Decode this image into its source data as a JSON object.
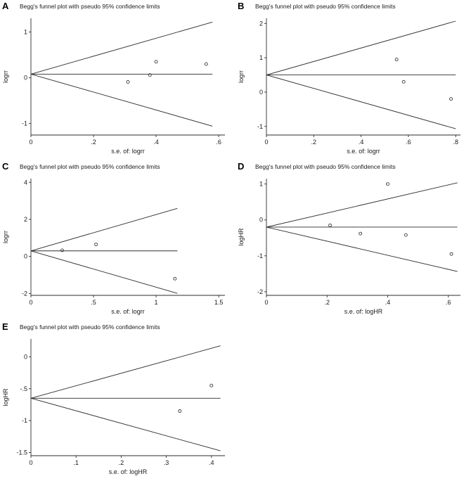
{
  "page": {
    "background": "#ffffff",
    "line_color": "#2b2b2b",
    "point_color": "#3a3a3a"
  },
  "chart_data": [
    {
      "type": "scatter",
      "panel": "A",
      "title": "Begg's funnel plot with pseudo 95% confidence limits",
      "xlabel": "s.e. of: logrr",
      "ylabel": "logrr",
      "xlim": [
        0,
        0.62
      ],
      "ylim": [
        -1.25,
        1.3
      ],
      "xticks": [
        0,
        0.2,
        0.4,
        0.6
      ],
      "xtick_labels": [
        "0",
        ".2",
        ".4",
        ".6"
      ],
      "yticks": [
        -1,
        0,
        1
      ],
      "ytick_labels": [
        "-1",
        "0",
        "1"
      ],
      "center": 0.08,
      "funnel_max_se": 0.58,
      "points": [
        [
          0.31,
          -0.09
        ],
        [
          0.38,
          0.06
        ],
        [
          0.4,
          0.35
        ],
        [
          0.56,
          0.3
        ]
      ]
    },
    {
      "type": "scatter",
      "panel": "B",
      "title": "Begg's funnel plot with pseudo 95% confidence limits",
      "xlabel": "s.e. of: logrr",
      "ylabel": "logrr",
      "xlim": [
        0,
        0.82
      ],
      "ylim": [
        -1.25,
        2.15
      ],
      "xticks": [
        0,
        0.2,
        0.4,
        0.6,
        0.8
      ],
      "xtick_labels": [
        "0",
        ".2",
        ".4",
        ".6",
        ".8"
      ],
      "yticks": [
        -1,
        0,
        1,
        2
      ],
      "ytick_labels": [
        "-1",
        "0",
        "1",
        "2"
      ],
      "center": 0.5,
      "funnel_max_se": 0.8,
      "points": [
        [
          0.55,
          0.95
        ],
        [
          0.58,
          0.3
        ],
        [
          0.78,
          -0.2
        ]
      ]
    },
    {
      "type": "scatter",
      "panel": "C",
      "title": "Begg's funnel plot with pseudo 95% confidence limits",
      "xlabel": "s.e. of: logrr",
      "ylabel": "logrr",
      "xlim": [
        0,
        1.55
      ],
      "ylim": [
        -2.1,
        4.2
      ],
      "xticks": [
        0,
        0.5,
        1,
        1.5
      ],
      "xtick_labels": [
        "0",
        ".5",
        "1",
        "1.5"
      ],
      "yticks": [
        -2,
        0,
        2,
        4
      ],
      "ytick_labels": [
        "-2",
        "0",
        "2",
        "4"
      ],
      "center": 0.3,
      "funnel_max_se": 1.17,
      "points": [
        [
          0.25,
          0.33
        ],
        [
          0.52,
          0.65
        ],
        [
          1.15,
          -1.2
        ]
      ]
    },
    {
      "type": "scatter",
      "panel": "D",
      "title": "Begg's funnel plot with pseudo 95% confidence limits",
      "xlabel": "s.e. of: logHR",
      "ylabel": "logHR",
      "xlim": [
        0,
        0.64
      ],
      "ylim": [
        -2.1,
        1.15
      ],
      "xticks": [
        0,
        0.2,
        0.4,
        0.6
      ],
      "xtick_labels": [
        "0",
        ".2",
        ".4",
        ".6"
      ],
      "yticks": [
        -2,
        -1,
        0,
        1
      ],
      "ytick_labels": [
        "-2",
        "-1",
        "0",
        "1"
      ],
      "center": -0.2,
      "funnel_max_se": 0.63,
      "points": [
        [
          0.4,
          1.0
        ],
        [
          0.21,
          -0.15
        ],
        [
          0.31,
          -0.38
        ],
        [
          0.46,
          -0.42
        ],
        [
          0.61,
          -0.95
        ]
      ]
    },
    {
      "type": "scatter",
      "panel": "E",
      "title": "Begg's funnel plot with pseudo 95% confidence limits",
      "xlabel": "s.e. of: logHR",
      "ylabel": "logHR",
      "xlim": [
        0,
        0.43
      ],
      "ylim": [
        -1.55,
        0.28
      ],
      "xticks": [
        0,
        0.1,
        0.2,
        0.3,
        0.4
      ],
      "xtick_labels": [
        "0",
        ".1",
        ".2",
        ".3",
        ".4"
      ],
      "yticks": [
        -1.5,
        -1,
        -0.5,
        0
      ],
      "ytick_labels": [
        "-1.5",
        "-1",
        "-.5",
        "0"
      ],
      "center": -0.65,
      "funnel_max_se": 0.42,
      "points": [
        [
          0.4,
          -0.45
        ],
        [
          0.33,
          -0.85
        ]
      ]
    }
  ]
}
